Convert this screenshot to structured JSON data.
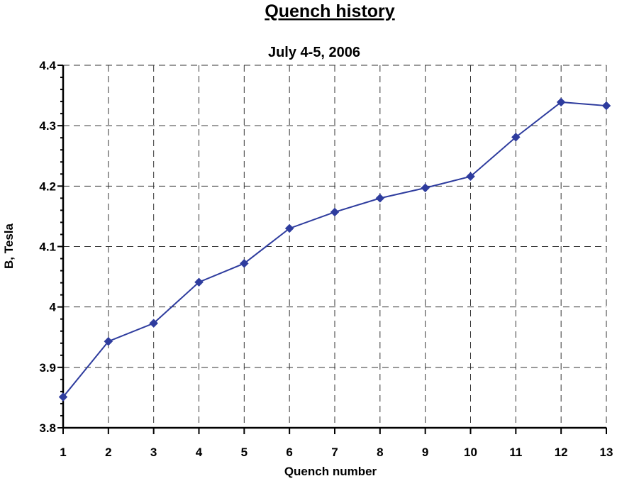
{
  "chart_data": {
    "type": "line",
    "title": "Quench history",
    "subtitle": "July 4-5, 2006",
    "xlabel": "Quench number",
    "ylabel": "B, Tesla",
    "x": [
      1,
      2,
      3,
      4,
      5,
      6,
      7,
      8,
      9,
      10,
      11,
      12,
      13
    ],
    "series": [
      {
        "values": [
          3.851,
          3.943,
          3.973,
          4.041,
          4.072,
          4.13,
          4.157,
          4.18,
          4.197,
          4.216,
          4.281,
          4.339,
          4.333
        ],
        "color": "#2e3c9e",
        "marker": "diamond"
      }
    ],
    "xlim": [
      1,
      13
    ],
    "ylim": [
      3.8,
      4.4
    ],
    "x_ticks": [
      "1",
      "2",
      "3",
      "4",
      "5",
      "6",
      "7",
      "8",
      "9",
      "10",
      "11",
      "12",
      "13"
    ],
    "y_ticks": [
      "3.8",
      "3.9",
      "4",
      "4.1",
      "4.2",
      "4.3",
      "4.4"
    ],
    "grid": true,
    "grid_style": "dashed"
  }
}
